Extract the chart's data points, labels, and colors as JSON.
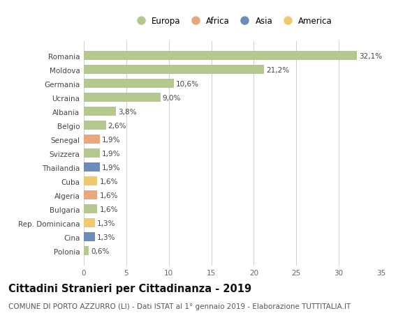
{
  "countries": [
    "Romania",
    "Moldova",
    "Germania",
    "Ucraina",
    "Albania",
    "Belgio",
    "Senegal",
    "Svizzera",
    "Thailandia",
    "Cuba",
    "Algeria",
    "Bulgaria",
    "Rep. Dominicana",
    "Cina",
    "Polonia"
  ],
  "values": [
    32.1,
    21.2,
    10.6,
    9.0,
    3.8,
    2.6,
    1.9,
    1.9,
    1.9,
    1.6,
    1.6,
    1.6,
    1.3,
    1.3,
    0.6
  ],
  "labels": [
    "32,1%",
    "21,2%",
    "10,6%",
    "9,0%",
    "3,8%",
    "2,6%",
    "1,9%",
    "1,9%",
    "1,9%",
    "1,6%",
    "1,6%",
    "1,6%",
    "1,3%",
    "1,3%",
    "0,6%"
  ],
  "continents": [
    "Europa",
    "Europa",
    "Europa",
    "Europa",
    "Europa",
    "Europa",
    "Africa",
    "Europa",
    "Asia",
    "America",
    "Africa",
    "Europa",
    "America",
    "Asia",
    "Europa"
  ],
  "colors": {
    "Europa": "#b5c98e",
    "Africa": "#e8a87c",
    "Asia": "#6b8cba",
    "America": "#f0c96e"
  },
  "legend_order": [
    "Europa",
    "Africa",
    "Asia",
    "America"
  ],
  "xlim": [
    0,
    35
  ],
  "xticks": [
    0,
    5,
    10,
    15,
    20,
    25,
    30,
    35
  ],
  "title": "Cittadini Stranieri per Cittadinanza - 2019",
  "subtitle": "COMUNE DI PORTO AZZURRO (LI) - Dati ISTAT al 1° gennaio 2019 - Elaborazione TUTTITALIA.IT",
  "bg_color": "#ffffff",
  "grid_color": "#d0d0d0",
  "bar_height": 0.65,
  "title_fontsize": 10.5,
  "subtitle_fontsize": 7.5,
  "label_fontsize": 7.5,
  "tick_fontsize": 7.5,
  "legend_fontsize": 8.5
}
